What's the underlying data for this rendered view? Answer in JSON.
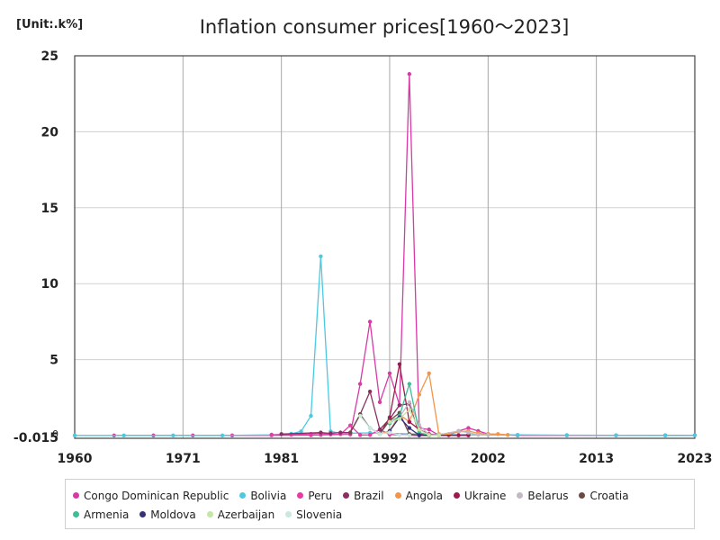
{
  "unit_label": "[Unit:.k%]",
  "chart_data": {
    "type": "line",
    "title": "Inflation consumer prices[1960～2023]",
    "unit": "[Unit:.k%]",
    "xlim": [
      1960,
      2023
    ],
    "ylim": [
      -0.015,
      25
    ],
    "x_ticks": [
      1960,
      1971,
      1981,
      1992,
      2002,
      2013,
      2023
    ],
    "y_ticks": [
      -0.015,
      0,
      5,
      10,
      15,
      20,
      25
    ],
    "y_tick_labels": [
      "-0.015",
      "0",
      "5",
      "10",
      "15",
      "20",
      "25"
    ],
    "grid": true,
    "legend_position": "bottom",
    "series": [
      {
        "name": "Congo Dominican Republic",
        "color": "#d63aa6",
        "x": [
          1964,
          1968,
          1972,
          1976,
          1980,
          1984,
          1985,
          1988,
          1989,
          1990,
          1991,
          1992,
          1993,
          1994,
          1995,
          1996,
          1997,
          1998,
          1999,
          2000,
          2001,
          2002,
          2005,
          2010,
          2015,
          2020,
          2023
        ],
        "y": [
          0.01,
          0.01,
          0.01,
          0.01,
          0.02,
          0.03,
          0.05,
          0.08,
          3.4,
          7.5,
          2.2,
          4.1,
          2.0,
          23.8,
          0.5,
          0.4,
          0.02,
          0.03,
          0.3,
          0.5,
          0.3,
          0.1,
          0.02,
          0.02,
          0.02,
          0.02,
          0.02
        ]
      },
      {
        "name": "Bolivia",
        "color": "#4cc9e0",
        "x": [
          1960,
          1965,
          1970,
          1975,
          1980,
          1982,
          1983,
          1984,
          1985,
          1986,
          1987,
          1990,
          1995,
          2000,
          2005,
          2010,
          2015,
          2020,
          2023
        ],
        "y": [
          0.01,
          0.01,
          0.01,
          0.01,
          0.05,
          0.12,
          0.28,
          1.3,
          11.8,
          0.28,
          0.15,
          0.18,
          0.1,
          0.05,
          0.05,
          0.03,
          0.02,
          0.01,
          0.02
        ]
      },
      {
        "name": "Peru",
        "color": "#e83aa6",
        "x": [
          1980,
          1982,
          1984,
          1985,
          1986,
          1987,
          1988,
          1989,
          1990,
          1991,
          1992,
          1993,
          1994,
          1995,
          1996,
          2000
        ],
        "y": [
          0.06,
          0.06,
          0.11,
          0.16,
          0.08,
          0.09,
          0.67,
          0.04,
          0.05,
          0.4,
          0.07,
          0.05,
          0.02,
          0.01,
          0.01,
          0.01
        ]
      },
      {
        "name": "Brazil",
        "color": "#8a2f63",
        "x": [
          1981,
          1985,
          1986,
          1987,
          1988,
          1989,
          1990,
          1991,
          1992,
          1993,
          1994,
          1995,
          1996,
          1998,
          2000
        ],
        "y": [
          0.1,
          0.2,
          0.15,
          0.2,
          0.2,
          1.4,
          2.9,
          0.4,
          1.1,
          2.0,
          2.1,
          0.1,
          0.08,
          0.03,
          0.05
        ]
      },
      {
        "name": "Angola",
        "color": "#f2954b",
        "x": [
          1991,
          1992,
          1993,
          1994,
          1995,
          1996,
          1997,
          1998,
          1999,
          2000,
          2001,
          2002,
          2003,
          2004
        ],
        "y": [
          0.1,
          0.3,
          1.4,
          0.9,
          2.7,
          4.1,
          0.1,
          0.1,
          0.25,
          0.3,
          0.15,
          0.1,
          0.1,
          0.05
        ]
      },
      {
        "name": "Ukraine",
        "color": "#9e1a4e",
        "x": [
          1991,
          1992,
          1993,
          1994,
          1995,
          1996,
          1997,
          1999,
          2000
        ],
        "y": [
          0.1,
          1.2,
          4.7,
          0.9,
          0.4,
          0.1,
          0.02,
          0.02,
          0.03
        ]
      },
      {
        "name": "Belarus",
        "color": "#c2b9c5",
        "x": [
          1991,
          1992,
          1993,
          1994,
          1995,
          1996,
          1997,
          1999,
          2000,
          2001,
          2002
        ],
        "y": [
          0.1,
          1.0,
          1.2,
          2.2,
          0.7,
          0.05,
          0.06,
          0.3,
          0.2,
          0.05,
          0.04
        ]
      },
      {
        "name": "Croatia",
        "color": "#6b4a45",
        "x": [
          1988,
          1989,
          1990,
          1991,
          1992,
          1993,
          1994,
          1995,
          1996
        ],
        "y": [
          0.2,
          1.4,
          0.5,
          0.12,
          1.0,
          1.5,
          0.1,
          0.03,
          0.01
        ]
      },
      {
        "name": "Armenia",
        "color": "#3dbd98",
        "x": [
          1992,
          1993,
          1994,
          1995,
          1996,
          1997
        ],
        "y": [
          0.8,
          1.3,
          3.4,
          0.2,
          0.02,
          0.01
        ]
      },
      {
        "name": "Moldova",
        "color": "#36307a",
        "x": [
          1992,
          1993,
          1994,
          1995,
          1996
        ],
        "y": [
          0.3,
          1.2,
          0.5,
          0.03,
          0.02
        ]
      },
      {
        "name": "Azerbaijan",
        "color": "#c6e6a8",
        "x": [
          1992,
          1993,
          1994,
          1995,
          1996,
          1997
        ],
        "y": [
          0.9,
          1.1,
          1.7,
          0.4,
          0.02,
          0.01
        ]
      },
      {
        "name": "Slovenia",
        "color": "#c9e9df",
        "x": [
          1989,
          1990,
          1991,
          1992,
          1993,
          1994
        ],
        "y": [
          1.3,
          0.5,
          0.1,
          0.2,
          0.03,
          0.02
        ]
      }
    ]
  }
}
